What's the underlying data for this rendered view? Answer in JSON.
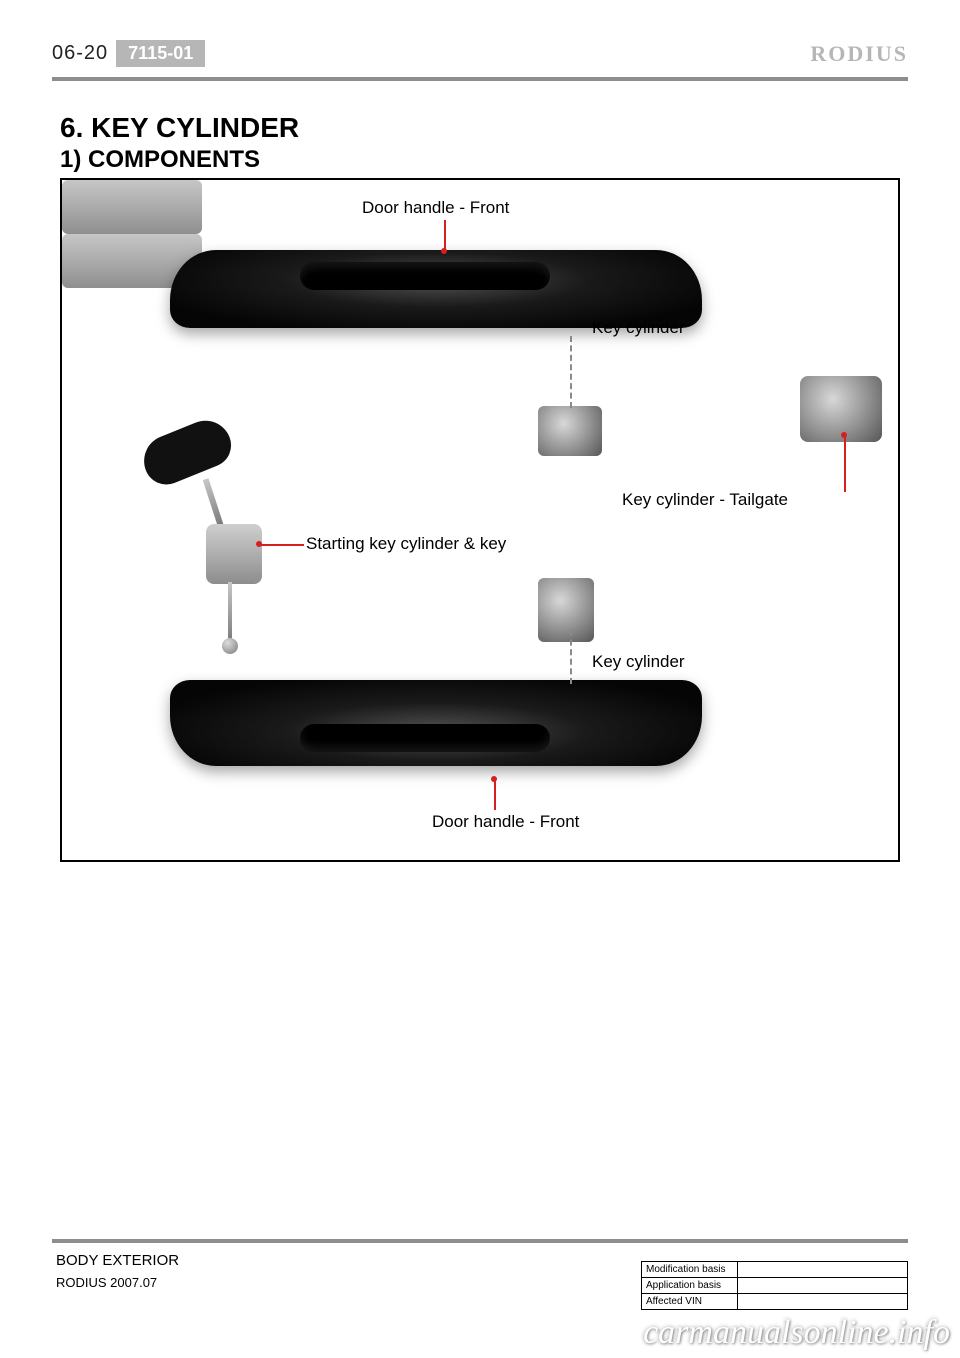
{
  "header": {
    "page_number": "06-20",
    "code": "7115-01",
    "brand": "RODIUS"
  },
  "titles": {
    "h1": "6. KEY CYLINDER",
    "h2": "1) COMPONENTS"
  },
  "figure": {
    "labels": {
      "door_handle_top": "Door handle - Front",
      "key_cylinder_1": "Key cylinder",
      "key_cylinder_tailgate": "Key cylinder - Tailgate",
      "starting_key": "Starting key cylinder & key",
      "key_cylinder_2": "Key cylinder",
      "door_handle_bottom": "Door handle - Front"
    },
    "leader_color": "#d61f1f",
    "dotted_color": "#8a8a8a",
    "border_color": "#000000",
    "background": "#ffffff"
  },
  "footer": {
    "section": "BODY EXTERIOR",
    "doc_rev": "RODIUS 2007.07",
    "table": {
      "rows": [
        [
          "Modification basis",
          ""
        ],
        [
          "Application basis",
          ""
        ],
        [
          "Affected VIN",
          ""
        ]
      ]
    }
  },
  "watermark": "carmanualsonline.info",
  "colors": {
    "rule": "#8e8e8e",
    "code_bg": "#b6b6b6",
    "brand_text": "#b6b6b6",
    "text": "#000000"
  }
}
